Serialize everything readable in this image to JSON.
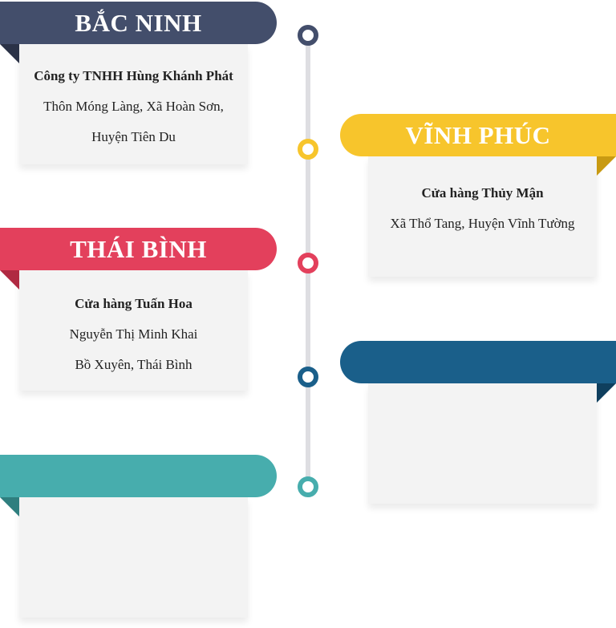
{
  "colors": {
    "navy": "#434e6b",
    "yellow": "#f7c52c",
    "red": "#e3405c",
    "blue": "#1a5f8a",
    "teal": "#47adad",
    "line": "#dedee2"
  },
  "items": [
    {
      "title": "BẮC NINH",
      "lines": [
        "Công ty TNHH Hùng Khánh Phát",
        "Thôn Móng Làng, Xã Hoàn Sơn,",
        "Huyện Tiên Du"
      ]
    },
    {
      "title": "VĨNH PHÚC",
      "lines": [
        "Cửa hàng Thủy Mận",
        "Xã Thổ Tang, Huyện Vĩnh Tường"
      ]
    },
    {
      "title": "THÁI BÌNH",
      "lines": [
        "Cửa hàng Tuấn Hoa",
        "Nguyễn Thị Minh Khai",
        "Bồ Xuyên, Thái Bình"
      ]
    },
    {
      "title": "",
      "lines": []
    },
    {
      "title": "",
      "lines": []
    }
  ]
}
